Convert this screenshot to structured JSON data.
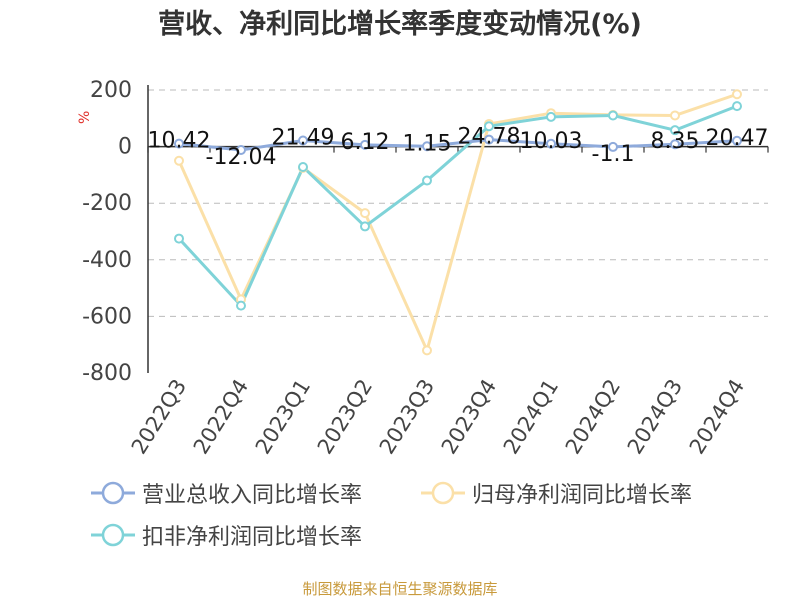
{
  "title": "营收、净利同比增长率季度变动情况(%)",
  "unit_label": "%",
  "source": "制图数据来自恒生聚源数据库",
  "colors": {
    "revenue": "#8eaadb",
    "net_profit": "#fbe0a8",
    "deducted_net_profit": "#7fd3d8",
    "axis": "#333333",
    "grid": "#bbbbbb"
  },
  "legend": [
    {
      "label": "营业总收入同比增长率",
      "series": 0
    },
    {
      "label": "归母净利润同比增长率",
      "series": 1
    },
    {
      "label": "扣非净利润同比增长率",
      "series": 2
    }
  ],
  "chart_data": {
    "type": "line",
    "categories": [
      "2022Q3",
      "2022Q4",
      "2023Q1",
      "2023Q2",
      "2023Q3",
      "2023Q4",
      "2024Q1",
      "2024Q2",
      "2024Q3",
      "2024Q4"
    ],
    "ylim": [
      -800,
      200
    ],
    "yticks": [
      200,
      0,
      -200,
      -400,
      -600,
      -800
    ],
    "grid": true,
    "legend_position": "bottom",
    "series": [
      {
        "name": "营业总收入同比增长率",
        "values": [
          10.42,
          -12.04,
          21.49,
          6.12,
          1.15,
          24.78,
          10.03,
          -1.1,
          8.35,
          20.47
        ],
        "labels": [
          "10.42",
          "-12.04",
          "21.49",
          "6.12",
          "1.15",
          "24.78",
          "10.03",
          "-1.1",
          "8.35",
          "20.47"
        ]
      },
      {
        "name": "归母净利润同比增长率",
        "values": [
          -50,
          -540,
          -75,
          -235,
          -720,
          80,
          118,
          112,
          110,
          185
        ]
      },
      {
        "name": "扣非净利润同比增长率",
        "values": [
          -325,
          -562,
          -72,
          -282,
          -120,
          72,
          105,
          110,
          58,
          143
        ]
      }
    ]
  }
}
